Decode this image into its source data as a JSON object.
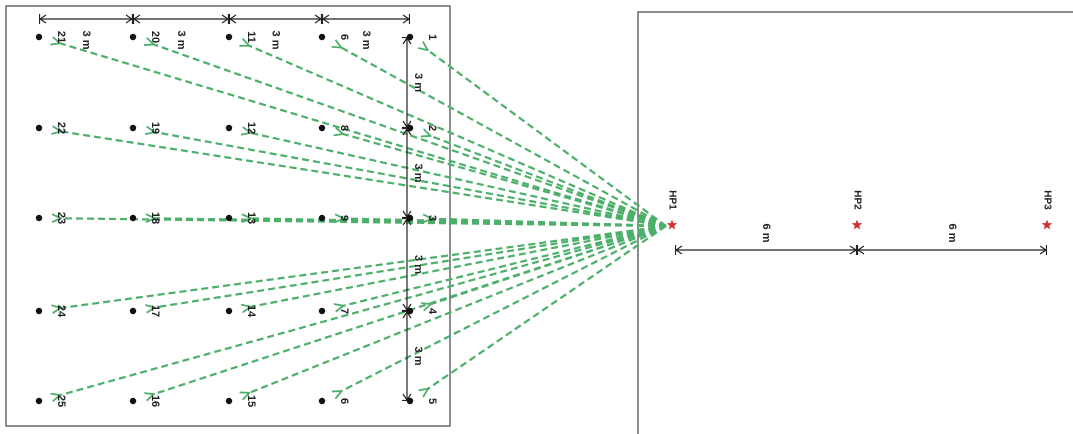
{
  "title": "",
  "colors": {
    "arrow": "#4caf6a",
    "source_star": "#d0312d",
    "frame": "#444444",
    "dot": "#111111",
    "dimension": "#222222"
  },
  "icons": {
    "point": "receiver-dot-icon",
    "source": "source-star-icon",
    "arrowhead": "arrowhead-icon"
  },
  "grid_points": [
    {
      "id": "1"
    },
    {
      "id": "2"
    },
    {
      "id": "3"
    },
    {
      "id": "4"
    },
    {
      "id": "5"
    },
    {
      "id": "6"
    },
    {
      "id": "8"
    },
    {
      "id": "9"
    },
    {
      "id": "7"
    },
    {
      "id": "6"
    },
    {
      "id": "11"
    },
    {
      "id": "12"
    },
    {
      "id": "13"
    },
    {
      "id": "14"
    },
    {
      "id": "15"
    },
    {
      "id": "20"
    },
    {
      "id": "19"
    },
    {
      "id": "18"
    },
    {
      "id": "17"
    },
    {
      "id": "16"
    },
    {
      "id": "21"
    },
    {
      "id": "22"
    },
    {
      "id": "23"
    },
    {
      "id": "24"
    },
    {
      "id": "25"
    }
  ],
  "top_dimensions": [
    "3 m",
    "3 m",
    "3 m",
    "3 m"
  ],
  "side_dimensions": [
    "3 m",
    "3 m",
    "3 m",
    "3 m"
  ],
  "source_points": [
    {
      "id": "HP1"
    },
    {
      "id": "HP2"
    },
    {
      "id": "HP3"
    }
  ],
  "source_dimensions": [
    "6 m",
    "6 m"
  ]
}
